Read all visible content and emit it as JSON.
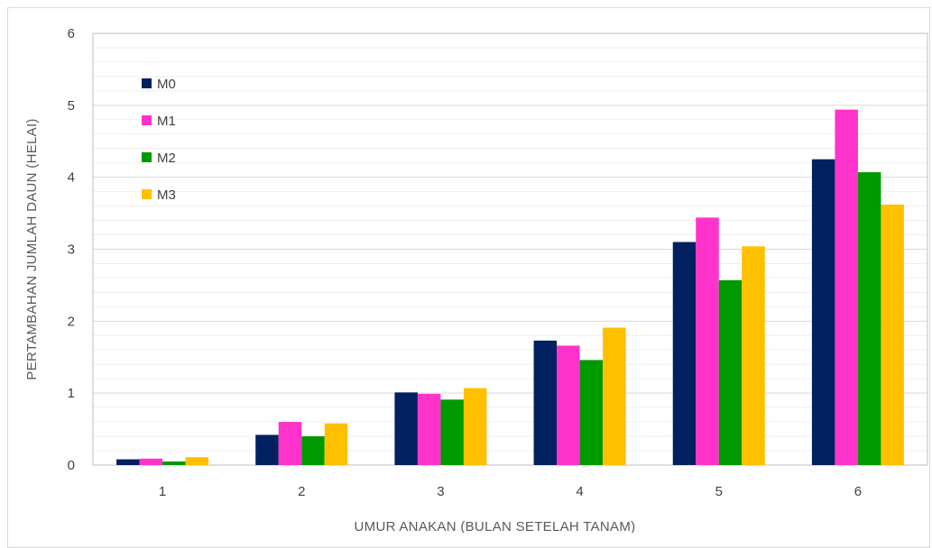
{
  "chart_data": {
    "type": "bar",
    "categories": [
      "1",
      "2",
      "3",
      "4",
      "5",
      "6"
    ],
    "series": [
      {
        "name": "M0",
        "color": "#002060",
        "values": [
          0.08,
          0.42,
          1.01,
          1.73,
          3.1,
          4.25
        ]
      },
      {
        "name": "M1",
        "color": "#ff33cc",
        "values": [
          0.09,
          0.6,
          0.99,
          1.66,
          3.44,
          4.94
        ]
      },
      {
        "name": "M2",
        "color": "#009900",
        "values": [
          0.05,
          0.4,
          0.91,
          1.46,
          2.57,
          4.07
        ]
      },
      {
        "name": "M3",
        "color": "#ffc000",
        "values": [
          0.11,
          0.58,
          1.07,
          1.91,
          3.04,
          3.62
        ]
      }
    ],
    "title": "",
    "xlabel": "UMUR ANAKAN (BULAN SETELAH TANAM)",
    "ylabel": "PERTAMBAHAN JUMLAH DAUN (HELAI)",
    "ylim": [
      0,
      6
    ],
    "yticks": [
      "0",
      "1",
      "2",
      "3",
      "4",
      "5",
      "6"
    ],
    "grid": true,
    "legend_position": "top-left"
  }
}
